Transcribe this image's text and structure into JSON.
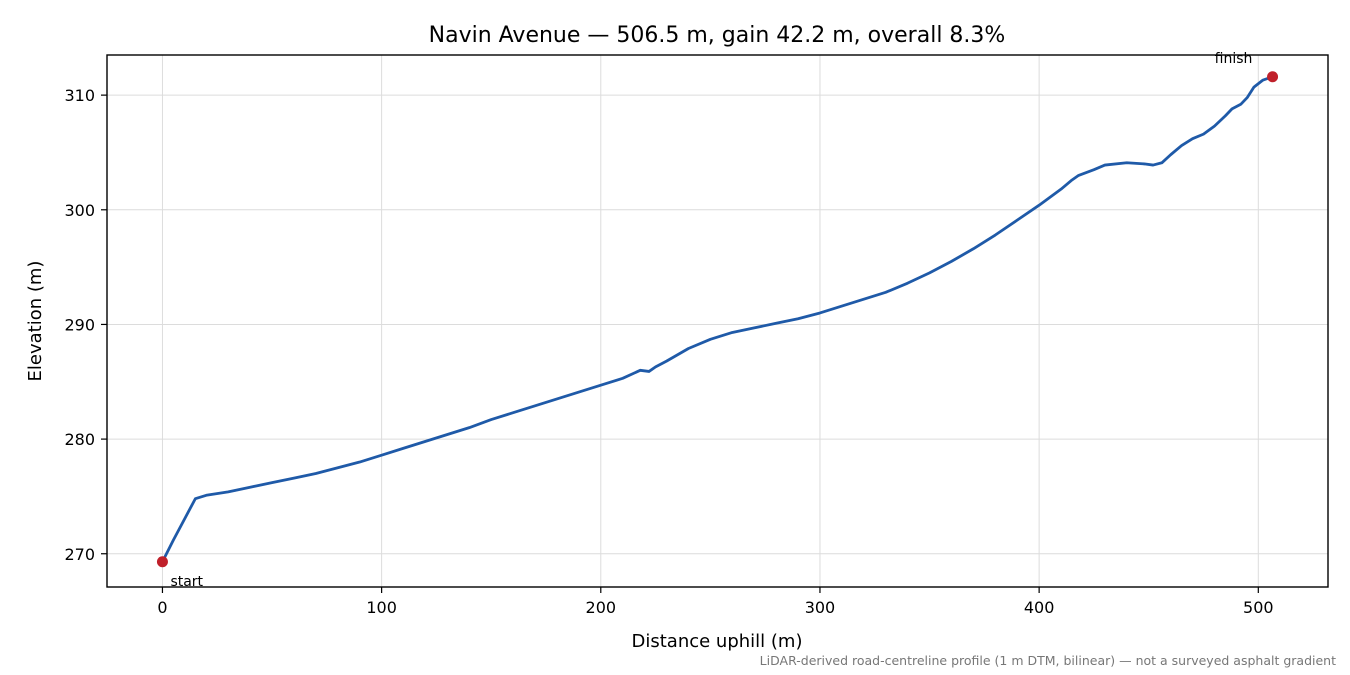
{
  "chart_data": {
    "type": "line",
    "title": "Navin Avenue — 506.5 m, gain 42.2 m, overall 8.3%",
    "xlabel": "Distance uphill (m)",
    "ylabel": "Elevation (m)",
    "xlim": [
      -25.3,
      531.8
    ],
    "ylim": [
      267.1,
      313.5
    ],
    "xticks": [
      0,
      100,
      200,
      300,
      400,
      500
    ],
    "yticks": [
      270,
      280,
      290,
      300,
      310
    ],
    "grid": true,
    "line_color": "#1f5aa8",
    "marker_color": "#c0202a",
    "series": [
      {
        "x": [
          0,
          5,
          10,
          15,
          20,
          30,
          40,
          50,
          60,
          70,
          80,
          90,
          100,
          110,
          120,
          130,
          140,
          150,
          160,
          170,
          180,
          190,
          200,
          210,
          218,
          222,
          225,
          230,
          240,
          250,
          260,
          270,
          280,
          290,
          300,
          310,
          320,
          330,
          340,
          350,
          360,
          370,
          380,
          390,
          400,
          410,
          415,
          418,
          425,
          430,
          440,
          448,
          452,
          456,
          460,
          465,
          470,
          475,
          480,
          485,
          488,
          492,
          495,
          498,
          502,
          506.5
        ],
        "y": [
          269.3,
          271.2,
          273.0,
          274.8,
          275.1,
          275.4,
          275.8,
          276.2,
          276.6,
          277.0,
          277.5,
          278.0,
          278.6,
          279.2,
          279.8,
          280.4,
          281.0,
          281.7,
          282.3,
          282.9,
          283.5,
          284.1,
          284.7,
          285.3,
          286.0,
          285.9,
          286.3,
          286.8,
          287.9,
          288.7,
          289.3,
          289.7,
          290.1,
          290.5,
          291.0,
          291.6,
          292.2,
          292.8,
          293.6,
          294.5,
          295.5,
          296.6,
          297.8,
          299.1,
          300.4,
          301.8,
          302.6,
          303.0,
          303.5,
          303.9,
          304.1,
          304.0,
          303.9,
          304.1,
          304.8,
          305.6,
          306.2,
          306.6,
          307.3,
          308.2,
          308.8,
          309.2,
          309.8,
          310.7,
          311.3,
          311.6
        ]
      }
    ],
    "annotations": [
      {
        "text": "start",
        "x": 0,
        "y": 269.3
      },
      {
        "text": "finish",
        "x": 506.5,
        "y": 311.6
      }
    ],
    "footnote": "LiDAR-derived road-centreline profile (1 m DTM, bilinear) — not a surveyed asphalt gradient"
  }
}
